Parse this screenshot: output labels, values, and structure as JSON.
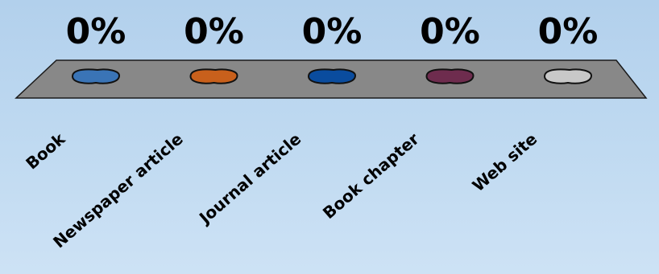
{
  "chart_data": {
    "type": "bar",
    "categories": [
      "Book",
      "Newspaper article",
      "Journal article",
      "Book chapter",
      "Web site"
    ],
    "values": [
      0,
      0,
      0,
      0,
      0
    ],
    "value_labels": [
      "0%",
      "0%",
      "0%",
      "0%",
      "0%"
    ],
    "colors": [
      "#3a74b6",
      "#c8601c",
      "#0a4c9e",
      "#6e2c4e",
      "#c8c8c8"
    ],
    "ylim": [
      0,
      100
    ],
    "grid": false,
    "legend": "none"
  },
  "style": {
    "platform_color": "#888888",
    "platform_border": "#1a1a1a",
    "background_top": "#b2d0ec",
    "background_bottom": "#cde2f5"
  }
}
